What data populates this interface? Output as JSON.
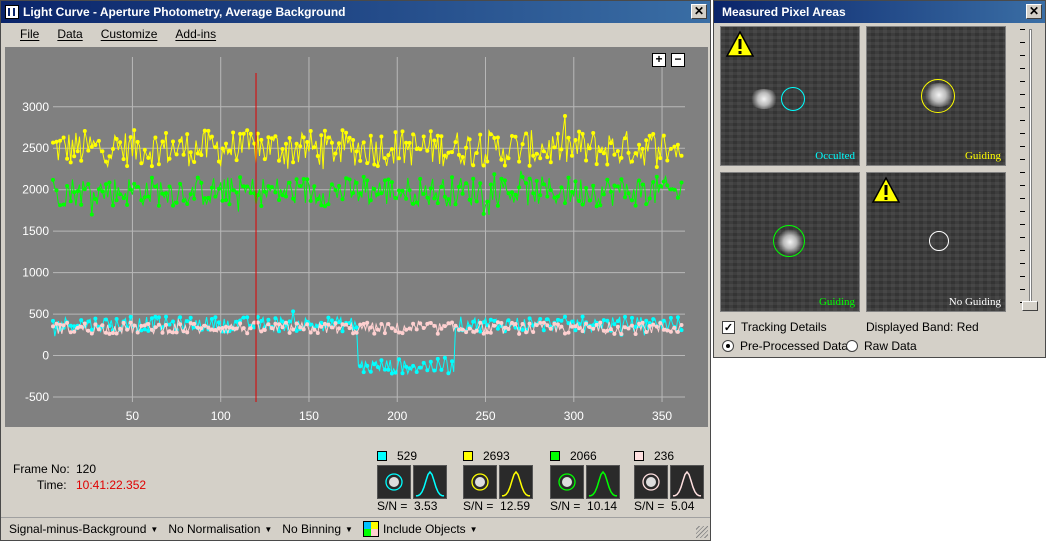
{
  "main_window": {
    "title": "Light Curve - Aperture Photometry, Average Background",
    "close_label": "✕",
    "menu": [
      "File",
      "Data",
      "Customize",
      "Add-ins"
    ]
  },
  "zoom": {
    "plus": "+",
    "minus": "−"
  },
  "chart_data": {
    "type": "line",
    "xlim": [
      5,
      363
    ],
    "ylim": [
      -560,
      3600
    ],
    "x_ticks": [
      50,
      100,
      150,
      200,
      250,
      300,
      350
    ],
    "y_ticks": [
      -500,
      0,
      500,
      1000,
      1500,
      2000,
      2500,
      3000
    ],
    "grid": true,
    "cursor_frame": 120,
    "series": [
      {
        "color": "#ffff00",
        "mean": 2500,
        "spread": 220
      },
      {
        "color": "#00ff00",
        "mean": 1980,
        "spread": 180
      },
      {
        "color": "#00ffff",
        "mean": 380,
        "spread": 90,
        "dip": {
          "from": 178,
          "to": 232,
          "level": -130
        }
      },
      {
        "color": "#ffd0d0",
        "mean": 330,
        "spread": 70
      }
    ]
  },
  "frame": {
    "label_no": "Frame No:",
    "value_no": "120",
    "label_time": "Time:",
    "value_time": "10:41:22.352"
  },
  "objects": [
    {
      "color": "#00ffff",
      "count": "529",
      "sn_label": "S/N =",
      "sn": "3.53"
    },
    {
      "color": "#ffff00",
      "count": "2693",
      "sn_label": "S/N =",
      "sn": "12.59"
    },
    {
      "color": "#00ff00",
      "count": "2066",
      "sn_label": "S/N =",
      "sn": "10.14"
    },
    {
      "color": "#ffe0e0",
      "count": "236",
      "sn_label": "S/N =",
      "sn": "5.04"
    }
  ],
  "status": {
    "background": "Signal-minus-Background",
    "normalisation": "No Normalisation",
    "binning": "No Binning",
    "include": "Include Objects"
  },
  "side_window": {
    "title": "Measured Pixel Areas",
    "close_label": "✕",
    "panels": [
      {
        "label": "Occulted",
        "color": "#00ffff"
      },
      {
        "label": "Guiding",
        "color": "#ffff00"
      },
      {
        "label": "Guiding",
        "color": "#00ff00"
      },
      {
        "label": "No Guiding",
        "color": "#ffffff"
      }
    ],
    "tracking_details": "Tracking Details",
    "displayed_band": "Displayed Band: Red",
    "pre_processed": "Pre-Processed Data",
    "raw_data": "Raw Data",
    "check_mark": "✓"
  }
}
